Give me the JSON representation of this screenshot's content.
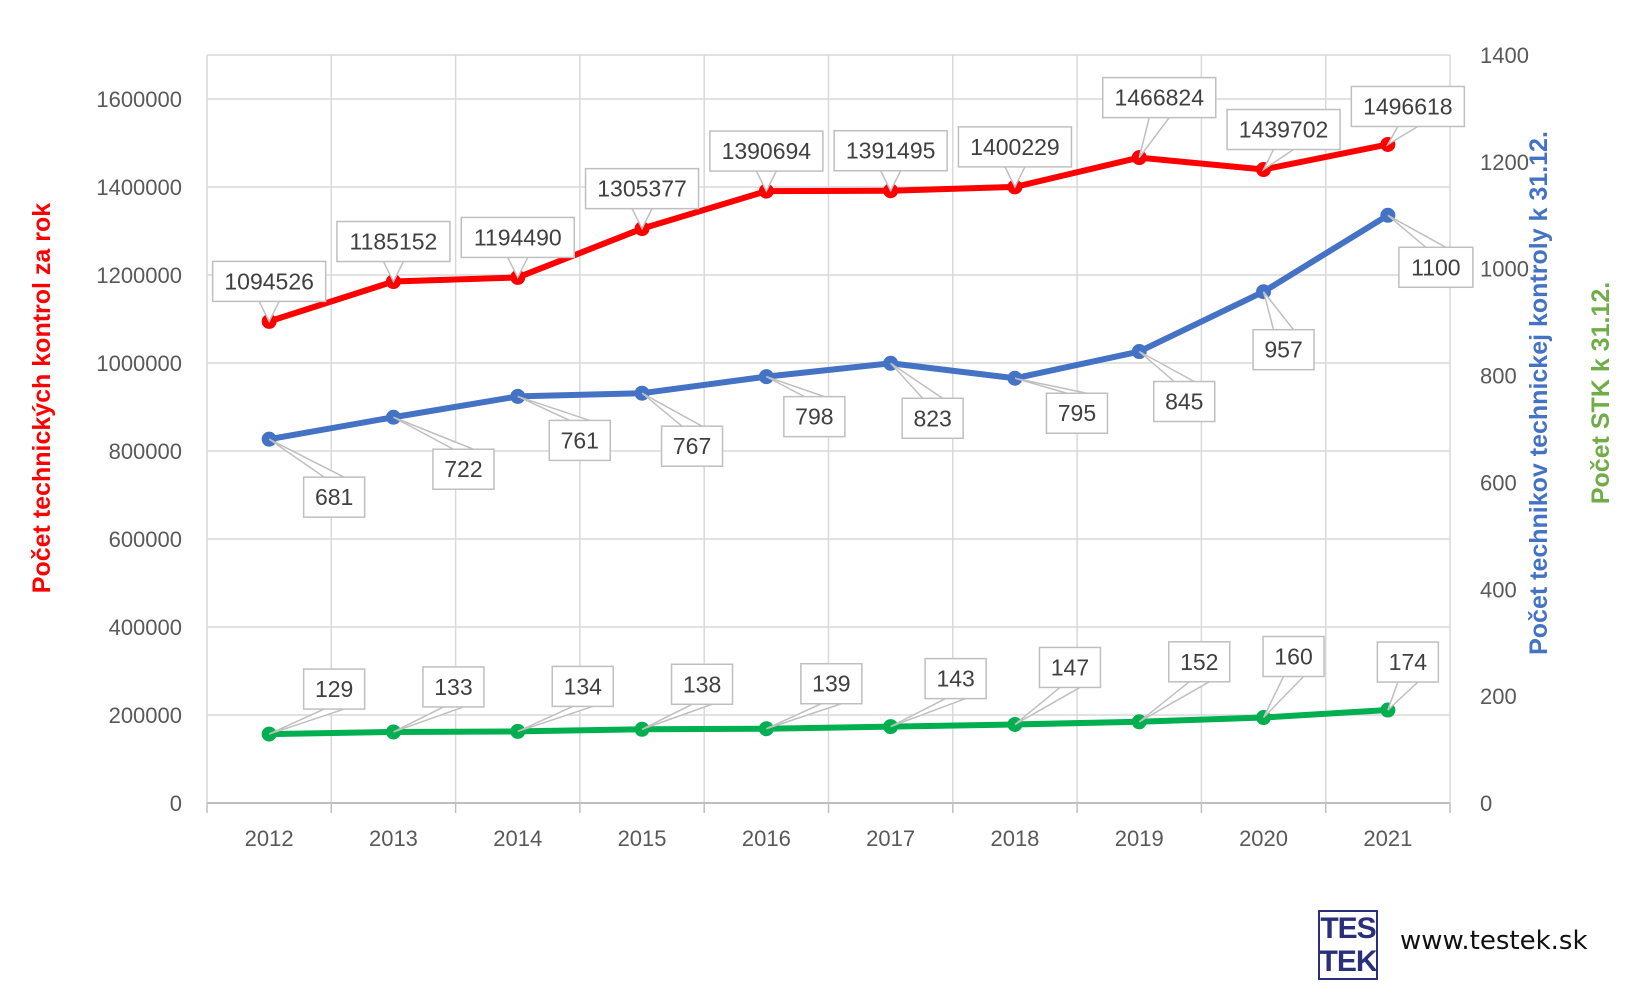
{
  "chart_data": {
    "type": "line",
    "categories": [
      "2012",
      "2013",
      "2014",
      "2015",
      "2016",
      "2017",
      "2018",
      "2019",
      "2020",
      "2021"
    ],
    "axes": {
      "left": {
        "title": "Počet technických kontrol za rok",
        "title_color": "#ff0000",
        "ylim": [
          0,
          1700000
        ],
        "ticks": [
          0,
          200000,
          400000,
          600000,
          800000,
          1000000,
          1200000,
          1400000,
          1600000
        ]
      },
      "right": {
        "title_primary": "Počet technikov technickej kontroly k 31.12.",
        "title_primary_color": "#4472c4",
        "title_secondary": "Počet STK k 31.12.",
        "title_secondary_color": "#70ad47",
        "ylim": [
          0,
          1400
        ],
        "ticks": [
          0,
          200,
          400,
          600,
          800,
          1000,
          1200,
          1400
        ]
      }
    },
    "series": [
      {
        "axis": "left",
        "color": "#ff0000",
        "values": [
          1094526,
          1185152,
          1194490,
          1305377,
          1390694,
          1391495,
          1400229,
          1466824,
          1439702,
          1496618
        ]
      },
      {
        "axis": "right",
        "color": "#4472c4",
        "values": [
          681,
          722,
          761,
          767,
          798,
          823,
          795,
          845,
          957,
          1100
        ]
      },
      {
        "axis": "right",
        "color": "#00b050",
        "values": [
          129,
          133,
          134,
          138,
          139,
          143,
          147,
          152,
          160,
          174
        ]
      }
    ],
    "grid": true,
    "legend": "none"
  },
  "footer": {
    "logo_top": "TES",
    "logo_bottom": "TEK",
    "website": "www.testek.sk"
  }
}
